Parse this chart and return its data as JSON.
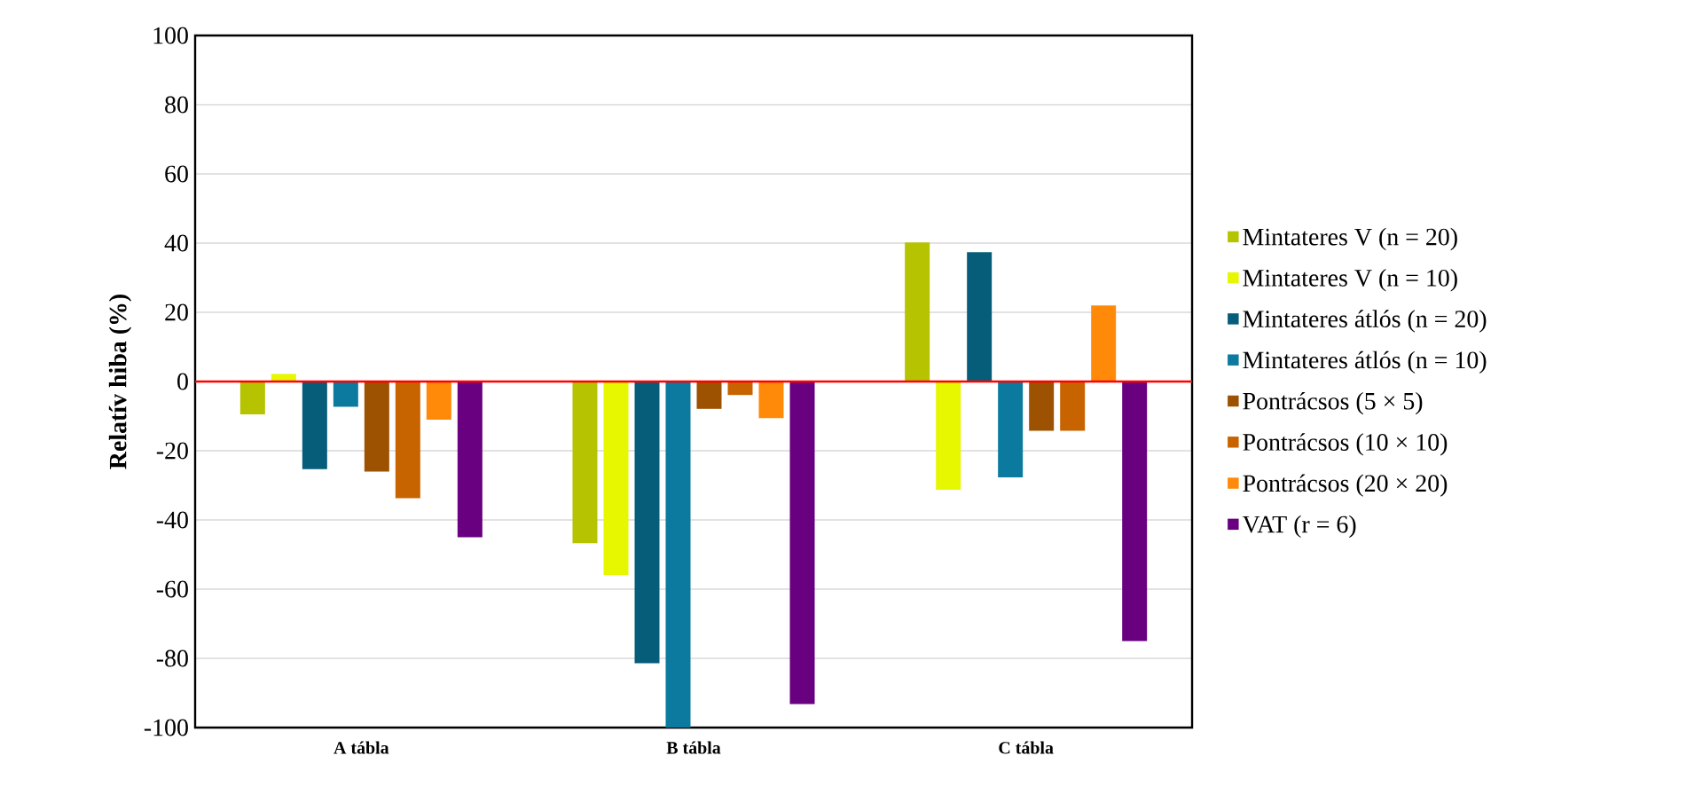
{
  "chart_data": {
    "type": "bar",
    "ylabel": "Relatív hiba (%)",
    "categories": [
      "A tábla",
      "B tábla",
      "C tábla"
    ],
    "series": [
      {
        "name": "Mintateres V (n = 20)",
        "color": "#b5c300",
        "values": [
          -9.5,
          -46.7,
          40.2
        ]
      },
      {
        "name": "Mintateres V (n = 10)",
        "color": "#e6f700",
        "values": [
          2.2,
          -55.9,
          -31.3
        ]
      },
      {
        "name": "Mintateres átlós (n = 20)",
        "color": "#065d7a",
        "values": [
          -25.3,
          -81.4,
          37.4
        ]
      },
      {
        "name": "Mintateres átlós (n = 10)",
        "color": "#0b7a9e",
        "values": [
          -7.3,
          -100,
          -27.7
        ]
      },
      {
        "name": "Pontrácsos (5 × 5)",
        "color": "#9c5200",
        "values": [
          -26,
          -7.9,
          -14.2
        ]
      },
      {
        "name": "Pontrácsos (10 × 10)",
        "color": "#c86400",
        "values": [
          -33.7,
          -3.9,
          -14.2
        ]
      },
      {
        "name": "Pontrácsos (20 × 20)",
        "color": "#ff8a0a",
        "values": [
          -11,
          -10.6,
          22
        ]
      },
      {
        "name": "VAT (r = 6)",
        "color": "#680080",
        "values": [
          -45,
          -93.2,
          -75
        ]
      }
    ],
    "ylim": [
      -100,
      100
    ],
    "yticks": [
      -100,
      -80,
      -60,
      -40,
      -20,
      0,
      20,
      40,
      60,
      80,
      100
    ],
    "grid": "y",
    "legend": "right",
    "ref_lines": [
      {
        "axis": "y",
        "value": 0,
        "color": "#ff0000"
      }
    ]
  }
}
